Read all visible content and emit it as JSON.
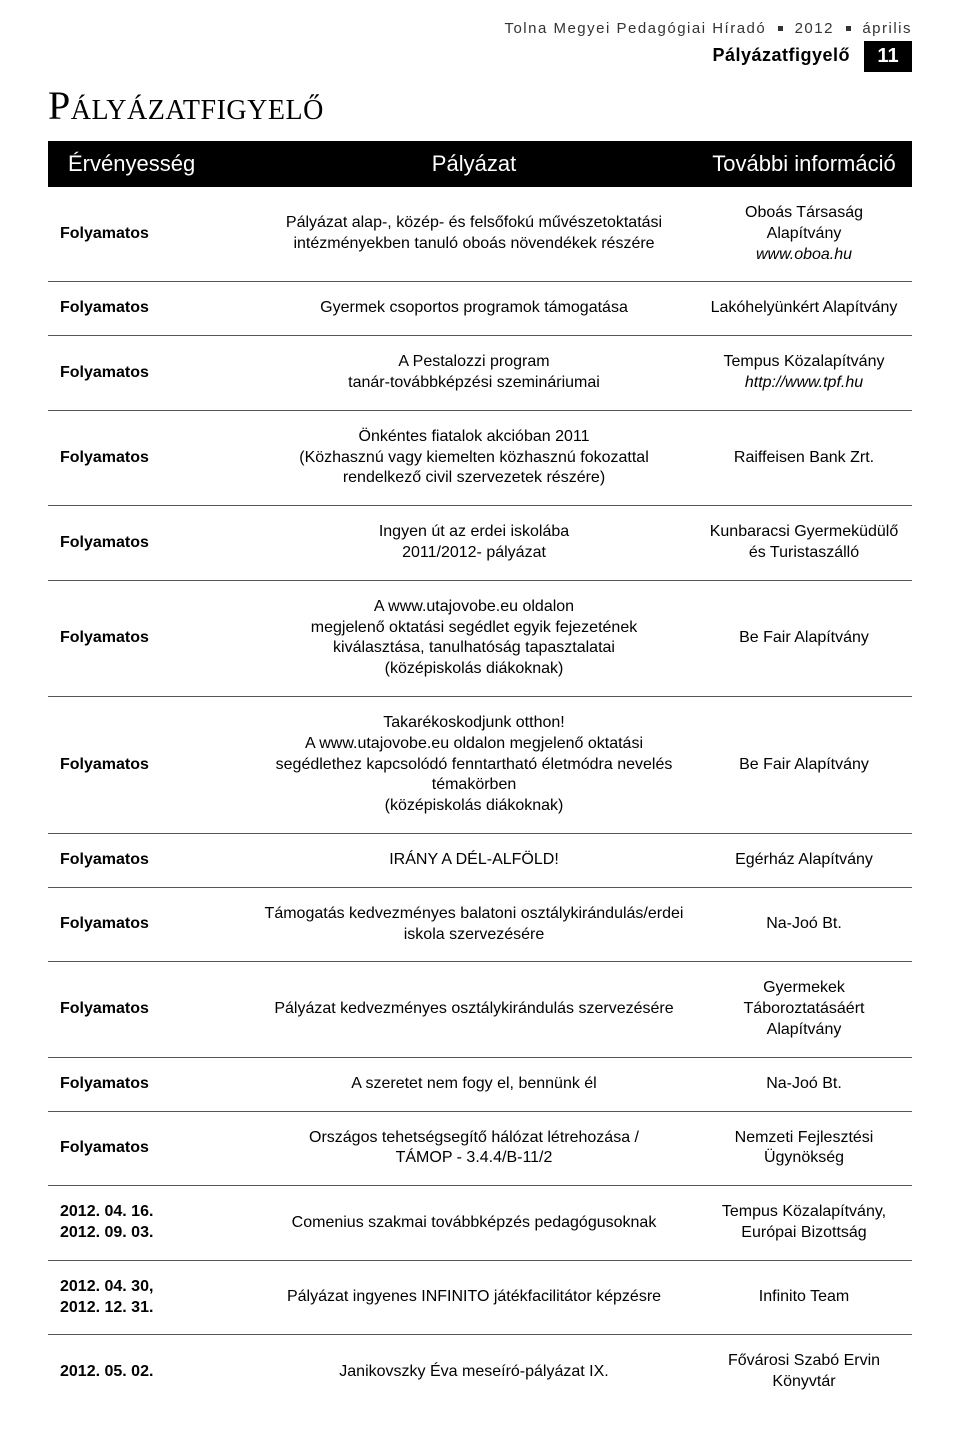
{
  "header": {
    "publication": "Tolna Megyei Pedagógiai Híradó",
    "year": "2012",
    "month": "április",
    "section_label": "Pályázatfigyelő",
    "page_number": "11"
  },
  "title": "Pályázatfigyelő",
  "table": {
    "columns": [
      "Érvényesség",
      "Pályázat",
      "További információ"
    ],
    "rows": [
      {
        "validity": "Folyamatos",
        "desc": "Pályázat alap-, közép- és felsőfokú művészetoktatási intézményekben tanuló oboás növendékek részére",
        "info": "Oboás Társaság Alapítvány",
        "info_extra_italic": "www.oboa.hu"
      },
      {
        "validity": "Folyamatos",
        "desc": "Gyermek csoportos programok támogatása",
        "info": "Lakóhelyünkért Alapítvány"
      },
      {
        "validity": "Folyamatos",
        "desc": "A Pestalozzi program\ntanár-továbbképzési szemináriumai",
        "info": "Tempus Közalapítvány",
        "info_extra_italic": "http://www.tpf.hu"
      },
      {
        "validity": "Folyamatos",
        "desc": "Önkéntes fiatalok akcióban 2011\n(Közhasznú vagy kiemelten közhasznú fokozattal rendelkező civil szervezetek részére)",
        "info": "Raiffeisen Bank Zrt."
      },
      {
        "validity": "Folyamatos",
        "desc": "Ingyen út az erdei iskolába\n2011/2012- pályázat",
        "info": "Kunbaracsi Gyermeküdülő és Turistaszálló"
      },
      {
        "validity": "Folyamatos",
        "desc": "A www.utajovobe.eu oldalon\nmegjelenő oktatási segédlet egyik fejezetének kiválasztása, tanulhatóság tapasztalatai\n(középiskolás diákoknak)",
        "info": "Be Fair Alapítvány"
      },
      {
        "validity": "Folyamatos",
        "desc": "Takarékoskodjunk otthon!\nA www.utajovobe.eu oldalon megjelenő oktatási segédlethez kapcsolódó fenntartható életmódra nevelés témakörben\n(középiskolás diákoknak)",
        "info": "Be Fair Alapítvány"
      },
      {
        "validity": "Folyamatos",
        "desc": "IRÁNY A DÉL-ALFÖLD!",
        "info": "Egérház Alapítvány"
      },
      {
        "validity": "Folyamatos",
        "desc": "Támogatás kedvezményes balatoni osztálykirándulás/erdei iskola szervezésére",
        "info": "Na-Joó Bt."
      },
      {
        "validity": "Folyamatos",
        "desc": "Pályázat kedvezményes osztálykirándulás szervezésére",
        "info": "Gyermekek Táboroztatásáért Alapítvány"
      },
      {
        "validity": "Folyamatos",
        "desc": "A szeretet nem fogy el, bennünk él",
        "info": "Na-Joó Bt."
      },
      {
        "validity": "Folyamatos",
        "desc": "Országos tehetségsegítő hálózat létrehozása /\nTÁMOP - 3.4.4/B-11/2",
        "info": "Nemzeti Fejlesztési Ügynökség"
      },
      {
        "validity": "2012. 04. 16.\n2012. 09. 03.",
        "desc": "Comenius szakmai továbbképzés pedagógusoknak",
        "info": "Tempus Közalapítvány,\nEurópai Bizottság"
      },
      {
        "validity": "2012. 04. 30,\n2012. 12. 31.",
        "desc": "Pályázat ingyenes INFINITO játékfacilitátor képzésre",
        "info": "Infinito Team"
      },
      {
        "validity": "2012. 05. 02.",
        "desc": "Janikovszky Éva meseíró-pályázat IX.",
        "info": "Fővárosi Szabó Ervin Könyvtár"
      }
    ]
  }
}
